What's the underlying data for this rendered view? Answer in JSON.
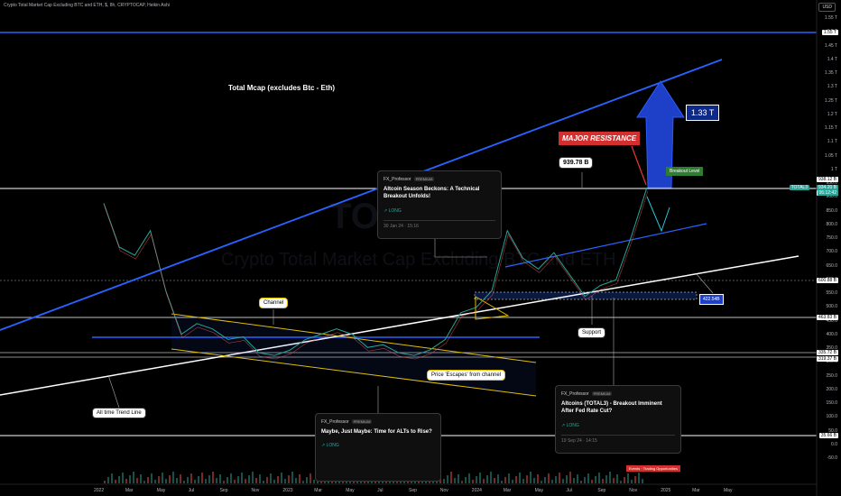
{
  "header": {
    "symbol_line": "Crypto Total Market Cap Excluding BTC and ETH, $, 8h, CRYPTOCAP, Heikin Ashi",
    "currency": "USD"
  },
  "annotations": {
    "main_title": "Total Mcap (excludes Btc - Eth)",
    "watermark_symbol": "TOTAL3",
    "watermark_name": "Crypto Total Market Cap Excluding BTC and ETH",
    "major_resistance": "MAJOR RESISTANCE",
    "target_box": "939.78 B",
    "target_arrow_box": "1.33 T",
    "breakout_level": "Breakout Level",
    "support_box": "422.54B",
    "support": "Support",
    "channel": "Channel",
    "trend_line": "All time Trend Line",
    "escapes": "Price 'Escapes' from channel",
    "bottom_badge": "Events · Trading Opportunities"
  },
  "cards": [
    {
      "author": "FX_Professor",
      "badge": "PREMIUM",
      "title": "Altcoin Season Beckons: A Technical Breakout Unfolds!",
      "tag": "LONG",
      "date": "30 Jan 24 · 15:16"
    },
    {
      "author": "FX_Professor",
      "badge": "PREMIUM",
      "title": "Altcoins (TOTAL3) - Breakout Imminent After Fed Rate Cut?",
      "tag": "LONG",
      "date": "19 Sep 24 · 14:15"
    },
    {
      "author": "FX_Professor",
      "badge": "PREMIUM",
      "title": "Maybe, Just Maybe: Time for ALTs to Rise?",
      "tag": "LONG",
      "date": ""
    }
  ],
  "price_axis": {
    "ticks": [
      "1.55 T",
      "1.5 T",
      "1.45 T",
      "1.4 T",
      "1.35 T",
      "1.3 T",
      "1.25 T",
      "1.2 T",
      "1.15 T",
      "1.1 T",
      "1.05 T",
      "1 T",
      "950.0",
      "900.0",
      "850.0",
      "800.0",
      "750.0",
      "700.0",
      "650.0",
      "600.0",
      "550.0",
      "500.0",
      "450.0",
      "400.0",
      "350.0",
      "300.0",
      "250.0",
      "200.0",
      "150.0",
      "100.0",
      "50.0",
      "0.0",
      "-50.0"
    ],
    "marked_levels": [
      "1.55 T",
      "938.12 B",
      "934.20 B",
      "600.88 B",
      "463.83 B",
      "335.72 B",
      "319.37 B",
      "35.66 B"
    ],
    "current_label": "TOTAL3",
    "current_value": "934.20 B",
    "countdown": "06:12:42"
  },
  "time_axis": [
    "2022",
    "Mar",
    "May",
    "Jul",
    "Sep",
    "Nov",
    "2023",
    "Mar",
    "May",
    "Jul",
    "Sep",
    "Nov",
    "2024",
    "Mar",
    "May",
    "Jul",
    "Sep",
    "Nov",
    "2025",
    "Mar",
    "May"
  ],
  "chart_data": {
    "type": "line",
    "title": "Crypto Total Market Cap Excluding BTC and ETH, $, 8h, CRYPTOCAP, Heikin Ashi",
    "xlabel": "",
    "ylabel": "",
    "unit": "USD (billions)",
    "x": [
      "2022-01",
      "2022-02",
      "2022-03",
      "2022-04",
      "2022-05",
      "2022-06",
      "2022-07",
      "2022-08",
      "2022-09",
      "2022-10",
      "2022-11",
      "2022-12",
      "2023-01",
      "2023-02",
      "2023-03",
      "2023-04",
      "2023-05",
      "2023-06",
      "2023-07",
      "2023-08",
      "2023-09",
      "2023-10",
      "2023-11",
      "2023-12",
      "2024-01",
      "2024-02",
      "2024-03",
      "2024-04",
      "2024-05",
      "2024-06",
      "2024-07",
      "2024-08",
      "2024-09",
      "2024-10",
      "2024-11",
      "2024-12"
    ],
    "series": [
      {
        "values": [
          880,
          720,
          690,
          780,
          560,
          400,
          440,
          420,
          380,
          390,
          330,
          320,
          340,
          380,
          400,
          420,
          400,
          350,
          360,
          330,
          320,
          340,
          380,
          480,
          500,
          560,
          780,
          680,
          640,
          700,
          620,
          540,
          580,
          600,
          760,
          938
        ]
      }
    ],
    "ylim": [
      -50,
      1600
    ],
    "grid": false
  }
}
